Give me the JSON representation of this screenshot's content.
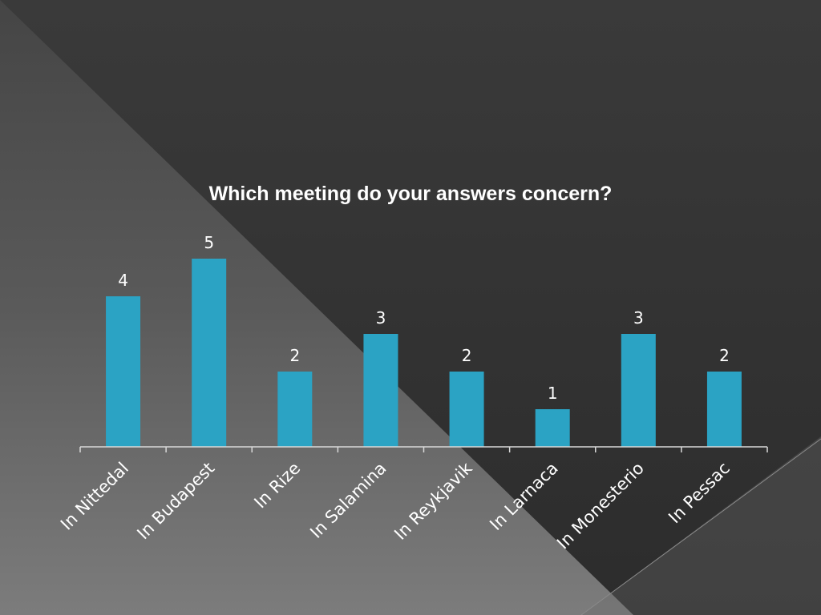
{
  "chart_data": {
    "type": "bar",
    "title": "Which meeting do your answers concern?",
    "categories": [
      "In Nittedal",
      "In Budapest",
      "In Rize",
      "In Salamina",
      "In Reykjavik",
      "In Larnaca",
      "In Monesterio",
      "In Pessac"
    ],
    "values": [
      4,
      5,
      2,
      3,
      2,
      1,
      3,
      2
    ],
    "xlabel": "",
    "ylabel": "",
    "ylim": [
      0,
      5
    ],
    "grid": false,
    "legend": "none",
    "data_labels": true,
    "colors": {
      "bar": "#2ba3c4",
      "axis": "#d9d9d9",
      "text": "#ffffff",
      "background_dark": "#333333",
      "background_light": "#7a7a7a"
    }
  }
}
